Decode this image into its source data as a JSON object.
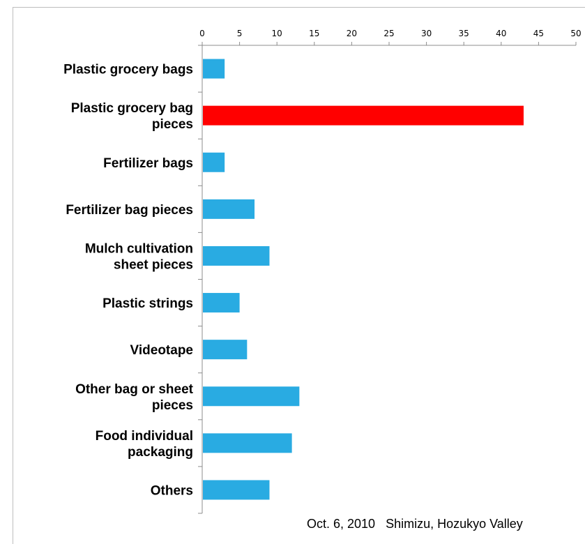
{
  "chart_data": {
    "type": "bar",
    "orientation": "horizontal",
    "categories": [
      "Plastic grocery bags",
      "Plastic grocery bag pieces",
      "Fertilizer bags",
      "Fertilizer bag pieces",
      "Mulch cultivation sheet pieces",
      "Plastic strings",
      "Videotape",
      "Other bag or sheet pieces",
      "Food individual packaging",
      "Others"
    ],
    "category_label_lines": [
      [
        "Plastic grocery bags"
      ],
      [
        "Plastic grocery bag",
        "pieces"
      ],
      [
        "Fertilizer bags"
      ],
      [
        "Fertilizer bag pieces"
      ],
      [
        "Mulch cultivation",
        "sheet pieces"
      ],
      [
        "Plastic strings"
      ],
      [
        "Videotape"
      ],
      [
        "Other bag or sheet",
        "pieces"
      ],
      [
        "Food individual",
        "packaging"
      ],
      [
        "Others"
      ]
    ],
    "values": [
      3,
      43,
      3,
      7,
      9,
      5,
      6,
      13,
      12,
      9
    ],
    "highlight_index": 1,
    "xlim": [
      0,
      50
    ],
    "ticks": [
      0,
      5,
      10,
      15,
      20,
      25,
      30,
      35,
      40,
      45,
      50
    ],
    "axis_position": "top",
    "grid": false,
    "legend": "none",
    "colors": {
      "bar": "#29abe2",
      "highlight": "#ff0000",
      "axis": "#8c8c8c"
    }
  },
  "footnote": "Oct. 6, 2010   Shimizu, Hozukyo Valley"
}
